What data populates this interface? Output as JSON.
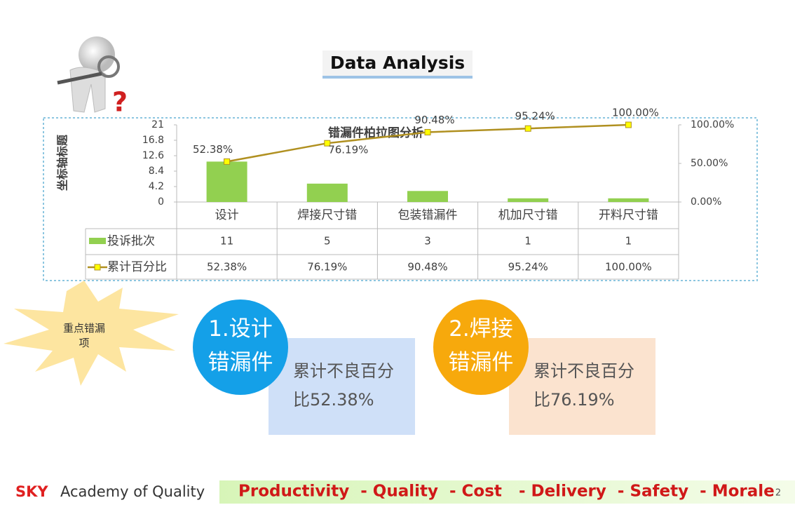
{
  "header": {
    "title": "Data Analysis"
  },
  "chart_data": {
    "type": "bar",
    "title": "错漏件柏拉图分析",
    "y_label": "坐标轴标题",
    "categories": [
      "设计",
      "焊接尺寸错",
      "包装错漏件",
      "机加尺寸错",
      "开料尺寸错"
    ],
    "series": [
      {
        "name": "投诉批次",
        "type": "bar",
        "color": "#92d050",
        "values": [
          11,
          5,
          3,
          1,
          1
        ]
      },
      {
        "name": "累计百分比",
        "type": "line",
        "axis": "y2",
        "color": "#b09020",
        "marker_color": "#ffff00",
        "values": [
          52.38,
          76.19,
          90.48,
          95.24,
          100
        ],
        "value_labels": [
          "52.38%",
          "76.19%",
          "90.48%",
          "95.24%",
          "100.00%"
        ]
      }
    ],
    "ylim": [
      0,
      21
    ],
    "yticks": [
      0,
      4.2,
      8.4,
      12.6,
      16.8,
      21
    ],
    "y2lim": [
      0,
      100
    ],
    "y2ticks": [
      {
        "value": 0,
        "label": "0.00%"
      },
      {
        "value": 50,
        "label": "50.00%"
      },
      {
        "value": 100,
        "label": "100.00%"
      }
    ],
    "data_table": true
  },
  "callout": "重点错漏项",
  "cards": [
    {
      "badge": "1.设计错漏件",
      "text": "累计不良百分比52.38%"
    },
    {
      "badge": "2.焊接错漏件",
      "text": "累计不良百分比76.19%"
    }
  ],
  "footer": {
    "brand": "SKY",
    "org": "Academy of Quality",
    "slogan": "Productivity  - Quality  - Cost   - Delivery  - Safety  - Morale",
    "page": "2"
  }
}
